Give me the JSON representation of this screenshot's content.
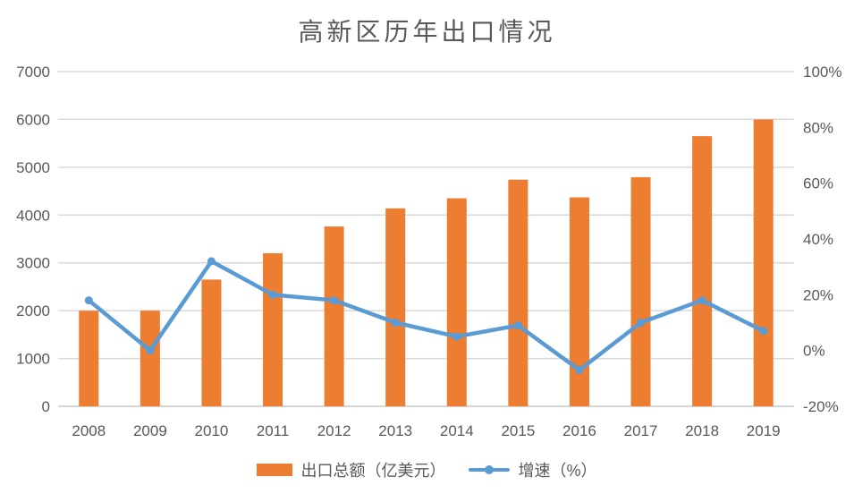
{
  "chart_data": {
    "type": "combo_bar_line",
    "title": "高新区历年出口情况",
    "categories": [
      "2008",
      "2009",
      "2010",
      "2011",
      "2012",
      "2013",
      "2014",
      "2015",
      "2016",
      "2017",
      "2018",
      "2019"
    ],
    "series": [
      {
        "name": "出口总额（亿美元）",
        "type": "bar",
        "axis": "left",
        "color": "#ED7D31",
        "values": [
          2000,
          2000,
          2650,
          3200,
          3760,
          4140,
          4350,
          4740,
          4370,
          4790,
          5650,
          6000
        ]
      },
      {
        "name": "增速（%）",
        "type": "line",
        "axis": "right",
        "color": "#5B9BD5",
        "values": [
          18,
          0,
          32,
          20,
          18,
          10,
          5,
          9,
          -7,
          10,
          18,
          7
        ]
      }
    ],
    "left_axis": {
      "min": 0,
      "max": 7000,
      "step": 1000,
      "tick_labels": [
        "0",
        "1000",
        "2000",
        "3000",
        "4000",
        "5000",
        "6000",
        "7000"
      ]
    },
    "right_axis": {
      "min": -20,
      "max": 100,
      "step": 20,
      "tick_labels": [
        "-20%",
        "0%",
        "20%",
        "40%",
        "60%",
        "80%",
        "100%"
      ]
    },
    "grid": true,
    "legend_position": "bottom",
    "colors": {
      "grid": "#D9D9D9",
      "axis_line": "#C9C9C9",
      "text": "#595959",
      "background": "#FFFFFF"
    }
  }
}
